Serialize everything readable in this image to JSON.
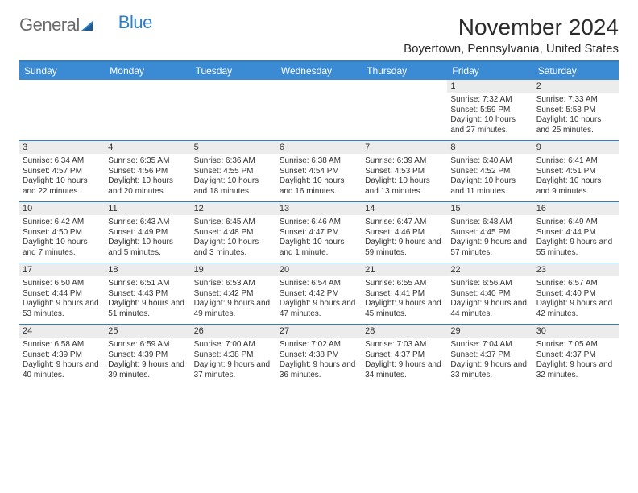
{
  "logo": {
    "word1": "General",
    "word2": "Blue"
  },
  "title": "November 2024",
  "location": "Boyertown, Pennsylvania, United States",
  "colors": {
    "header_bg": "#3b8bd4",
    "header_text": "#ffffff",
    "rule": "#2f7fc2",
    "daynum_bg": "#ececec",
    "body_text": "#333333",
    "page_bg": "#ffffff",
    "logo_gray": "#6a6a6a",
    "logo_blue": "#2f7fc2"
  },
  "typography": {
    "title_fontsize": 28,
    "location_fontsize": 15,
    "dayheader_fontsize": 12,
    "daynum_fontsize": 11,
    "body_fontsize": 10
  },
  "day_headers": [
    "Sunday",
    "Monday",
    "Tuesday",
    "Wednesday",
    "Thursday",
    "Friday",
    "Saturday"
  ],
  "weeks": [
    [
      {
        "n": "",
        "sunrise": "",
        "sunset": "",
        "daylight": ""
      },
      {
        "n": "",
        "sunrise": "",
        "sunset": "",
        "daylight": ""
      },
      {
        "n": "",
        "sunrise": "",
        "sunset": "",
        "daylight": ""
      },
      {
        "n": "",
        "sunrise": "",
        "sunset": "",
        "daylight": ""
      },
      {
        "n": "",
        "sunrise": "",
        "sunset": "",
        "daylight": ""
      },
      {
        "n": "1",
        "sunrise": "Sunrise: 7:32 AM",
        "sunset": "Sunset: 5:59 PM",
        "daylight": "Daylight: 10 hours and 27 minutes."
      },
      {
        "n": "2",
        "sunrise": "Sunrise: 7:33 AM",
        "sunset": "Sunset: 5:58 PM",
        "daylight": "Daylight: 10 hours and 25 minutes."
      }
    ],
    [
      {
        "n": "3",
        "sunrise": "Sunrise: 6:34 AM",
        "sunset": "Sunset: 4:57 PM",
        "daylight": "Daylight: 10 hours and 22 minutes."
      },
      {
        "n": "4",
        "sunrise": "Sunrise: 6:35 AM",
        "sunset": "Sunset: 4:56 PM",
        "daylight": "Daylight: 10 hours and 20 minutes."
      },
      {
        "n": "5",
        "sunrise": "Sunrise: 6:36 AM",
        "sunset": "Sunset: 4:55 PM",
        "daylight": "Daylight: 10 hours and 18 minutes."
      },
      {
        "n": "6",
        "sunrise": "Sunrise: 6:38 AM",
        "sunset": "Sunset: 4:54 PM",
        "daylight": "Daylight: 10 hours and 16 minutes."
      },
      {
        "n": "7",
        "sunrise": "Sunrise: 6:39 AM",
        "sunset": "Sunset: 4:53 PM",
        "daylight": "Daylight: 10 hours and 13 minutes."
      },
      {
        "n": "8",
        "sunrise": "Sunrise: 6:40 AM",
        "sunset": "Sunset: 4:52 PM",
        "daylight": "Daylight: 10 hours and 11 minutes."
      },
      {
        "n": "9",
        "sunrise": "Sunrise: 6:41 AM",
        "sunset": "Sunset: 4:51 PM",
        "daylight": "Daylight: 10 hours and 9 minutes."
      }
    ],
    [
      {
        "n": "10",
        "sunrise": "Sunrise: 6:42 AM",
        "sunset": "Sunset: 4:50 PM",
        "daylight": "Daylight: 10 hours and 7 minutes."
      },
      {
        "n": "11",
        "sunrise": "Sunrise: 6:43 AM",
        "sunset": "Sunset: 4:49 PM",
        "daylight": "Daylight: 10 hours and 5 minutes."
      },
      {
        "n": "12",
        "sunrise": "Sunrise: 6:45 AM",
        "sunset": "Sunset: 4:48 PM",
        "daylight": "Daylight: 10 hours and 3 minutes."
      },
      {
        "n": "13",
        "sunrise": "Sunrise: 6:46 AM",
        "sunset": "Sunset: 4:47 PM",
        "daylight": "Daylight: 10 hours and 1 minute."
      },
      {
        "n": "14",
        "sunrise": "Sunrise: 6:47 AM",
        "sunset": "Sunset: 4:46 PM",
        "daylight": "Daylight: 9 hours and 59 minutes."
      },
      {
        "n": "15",
        "sunrise": "Sunrise: 6:48 AM",
        "sunset": "Sunset: 4:45 PM",
        "daylight": "Daylight: 9 hours and 57 minutes."
      },
      {
        "n": "16",
        "sunrise": "Sunrise: 6:49 AM",
        "sunset": "Sunset: 4:44 PM",
        "daylight": "Daylight: 9 hours and 55 minutes."
      }
    ],
    [
      {
        "n": "17",
        "sunrise": "Sunrise: 6:50 AM",
        "sunset": "Sunset: 4:44 PM",
        "daylight": "Daylight: 9 hours and 53 minutes."
      },
      {
        "n": "18",
        "sunrise": "Sunrise: 6:51 AM",
        "sunset": "Sunset: 4:43 PM",
        "daylight": "Daylight: 9 hours and 51 minutes."
      },
      {
        "n": "19",
        "sunrise": "Sunrise: 6:53 AM",
        "sunset": "Sunset: 4:42 PM",
        "daylight": "Daylight: 9 hours and 49 minutes."
      },
      {
        "n": "20",
        "sunrise": "Sunrise: 6:54 AM",
        "sunset": "Sunset: 4:42 PM",
        "daylight": "Daylight: 9 hours and 47 minutes."
      },
      {
        "n": "21",
        "sunrise": "Sunrise: 6:55 AM",
        "sunset": "Sunset: 4:41 PM",
        "daylight": "Daylight: 9 hours and 45 minutes."
      },
      {
        "n": "22",
        "sunrise": "Sunrise: 6:56 AM",
        "sunset": "Sunset: 4:40 PM",
        "daylight": "Daylight: 9 hours and 44 minutes."
      },
      {
        "n": "23",
        "sunrise": "Sunrise: 6:57 AM",
        "sunset": "Sunset: 4:40 PM",
        "daylight": "Daylight: 9 hours and 42 minutes."
      }
    ],
    [
      {
        "n": "24",
        "sunrise": "Sunrise: 6:58 AM",
        "sunset": "Sunset: 4:39 PM",
        "daylight": "Daylight: 9 hours and 40 minutes."
      },
      {
        "n": "25",
        "sunrise": "Sunrise: 6:59 AM",
        "sunset": "Sunset: 4:39 PM",
        "daylight": "Daylight: 9 hours and 39 minutes."
      },
      {
        "n": "26",
        "sunrise": "Sunrise: 7:00 AM",
        "sunset": "Sunset: 4:38 PM",
        "daylight": "Daylight: 9 hours and 37 minutes."
      },
      {
        "n": "27",
        "sunrise": "Sunrise: 7:02 AM",
        "sunset": "Sunset: 4:38 PM",
        "daylight": "Daylight: 9 hours and 36 minutes."
      },
      {
        "n": "28",
        "sunrise": "Sunrise: 7:03 AM",
        "sunset": "Sunset: 4:37 PM",
        "daylight": "Daylight: 9 hours and 34 minutes."
      },
      {
        "n": "29",
        "sunrise": "Sunrise: 7:04 AM",
        "sunset": "Sunset: 4:37 PM",
        "daylight": "Daylight: 9 hours and 33 minutes."
      },
      {
        "n": "30",
        "sunrise": "Sunrise: 7:05 AM",
        "sunset": "Sunset: 4:37 PM",
        "daylight": "Daylight: 9 hours and 32 minutes."
      }
    ]
  ]
}
